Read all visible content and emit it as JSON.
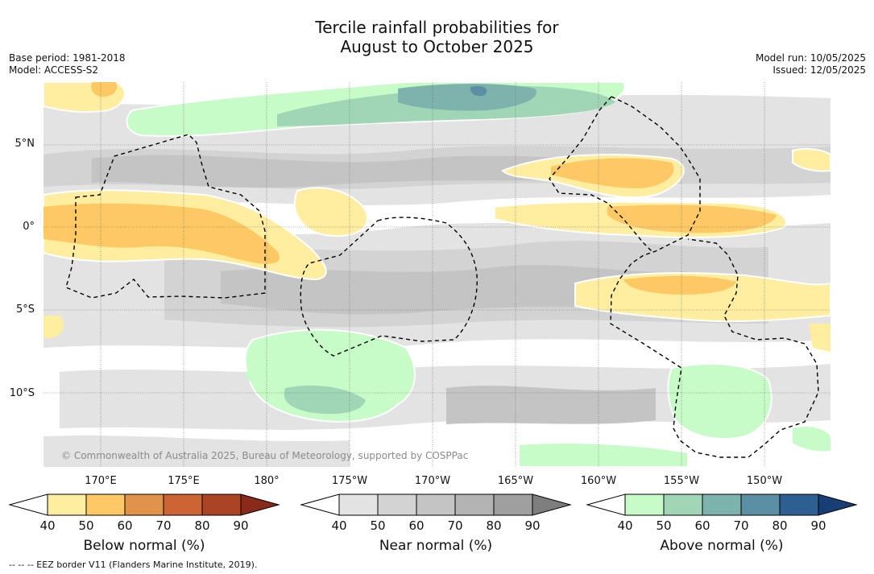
{
  "title_line1": "Tercile rainfall probabilities for",
  "title_line2": "August to October 2025",
  "left_meta": {
    "base_period": "Base period: 1981-2018",
    "model": "Model: ACCESS-S2"
  },
  "right_meta": {
    "model_run": "Model run: 10/05/2025",
    "issued": "Issued: 12/05/2025"
  },
  "map": {
    "lat_labels": [
      "5°N",
      "0°",
      "5°S",
      "10°S"
    ],
    "lon_labels": [
      "170°E",
      "175°E",
      "180°",
      "175°W",
      "170°W",
      "165°W",
      "160°W",
      "155°W",
      "150°W"
    ],
    "copyright": "© Commonwealth of Australia 2025, Bureau of Meteorology, supported by COSPPac"
  },
  "colorbars": [
    {
      "title": "Below normal (%)",
      "ticks": [
        "40",
        "50",
        "60",
        "70",
        "80",
        "90"
      ],
      "colors": [
        "#ffffff",
        "#ffeda0",
        "#fec965",
        "#e0944a",
        "#cc6434",
        "#ab4424",
        "#8a2a1a"
      ]
    },
    {
      "title": "Near normal (%)",
      "ticks": [
        "40",
        "50",
        "60",
        "70",
        "80",
        "90"
      ],
      "colors": [
        "#ffffff",
        "#e3e3e3",
        "#d3d3d3",
        "#c4c4c4",
        "#b3b3b3",
        "#9f9f9f",
        "#7e7e7e"
      ]
    },
    {
      "title": "Above normal (%)",
      "ticks": [
        "40",
        "50",
        "60",
        "70",
        "80",
        "90"
      ],
      "colors": [
        "#ffffff",
        "#c7fbc8",
        "#a0d6b6",
        "#7db2ad",
        "#5b8fa3",
        "#2e5f93",
        "#173f75"
      ]
    }
  ],
  "footnote": "--  --  -- EEZ border V11 (Flanders Marine Institute, 2019)."
}
